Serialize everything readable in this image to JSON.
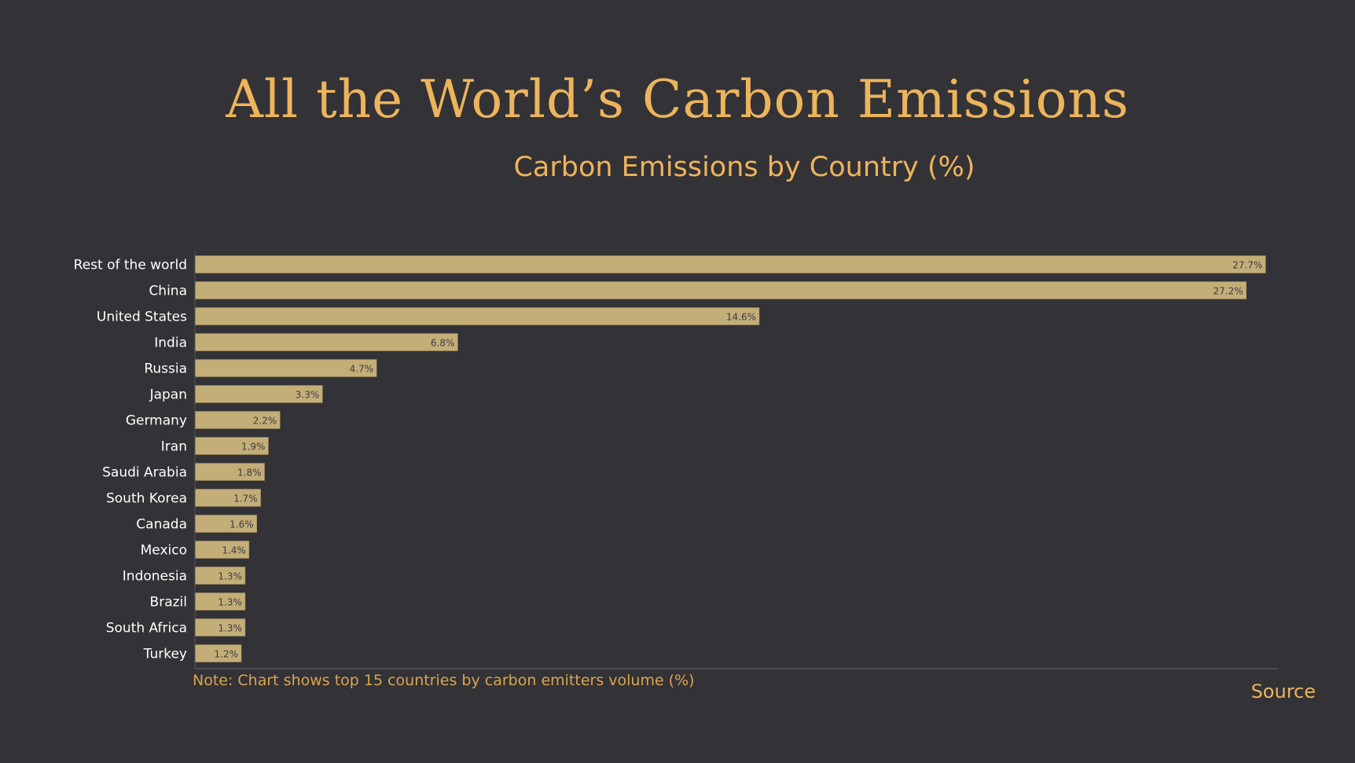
{
  "header": {
    "title": "All the World’s Carbon Emissions",
    "subtitle": "Carbon Emissions by Country (%)"
  },
  "footer": {
    "note": "Note: Chart shows top 15 countries by carbon emitters volume (%)",
    "source_link": "Source"
  },
  "colors": {
    "background": "#333236",
    "bar": "#C4AE78",
    "accent": "#EDB45C",
    "axis": "#55555C"
  },
  "chart_data": {
    "type": "bar",
    "orientation": "horizontal",
    "title": "All the World’s Carbon Emissions",
    "subtitle": "Carbon Emissions by Country (%)",
    "categories": [
      "Rest of the world",
      "China",
      "United States",
      "India",
      "Russia",
      "Japan",
      "Germany",
      "Iran",
      "Saudi Arabia",
      "South Korea",
      "Canada",
      "Mexico",
      "Indonesia",
      "Brazil",
      "South Africa",
      "Turkey"
    ],
    "values": [
      27.7,
      27.2,
      14.6,
      6.8,
      4.7,
      3.3,
      2.2,
      1.9,
      1.8,
      1.7,
      1.6,
      1.4,
      1.3,
      1.3,
      1.3,
      1.2
    ],
    "value_labels": [
      "27.7%",
      "27.2%",
      "14.6%",
      "6.8%",
      "4.7%",
      "3.3%",
      "2.2%",
      "1.9%",
      "1.8%",
      "1.7%",
      "1.6%",
      "1.4%",
      "1.3%",
      "1.3%",
      "1.3%",
      "1.2%"
    ],
    "xlim": [
      0,
      28
    ],
    "grid": false,
    "legend": "none"
  }
}
